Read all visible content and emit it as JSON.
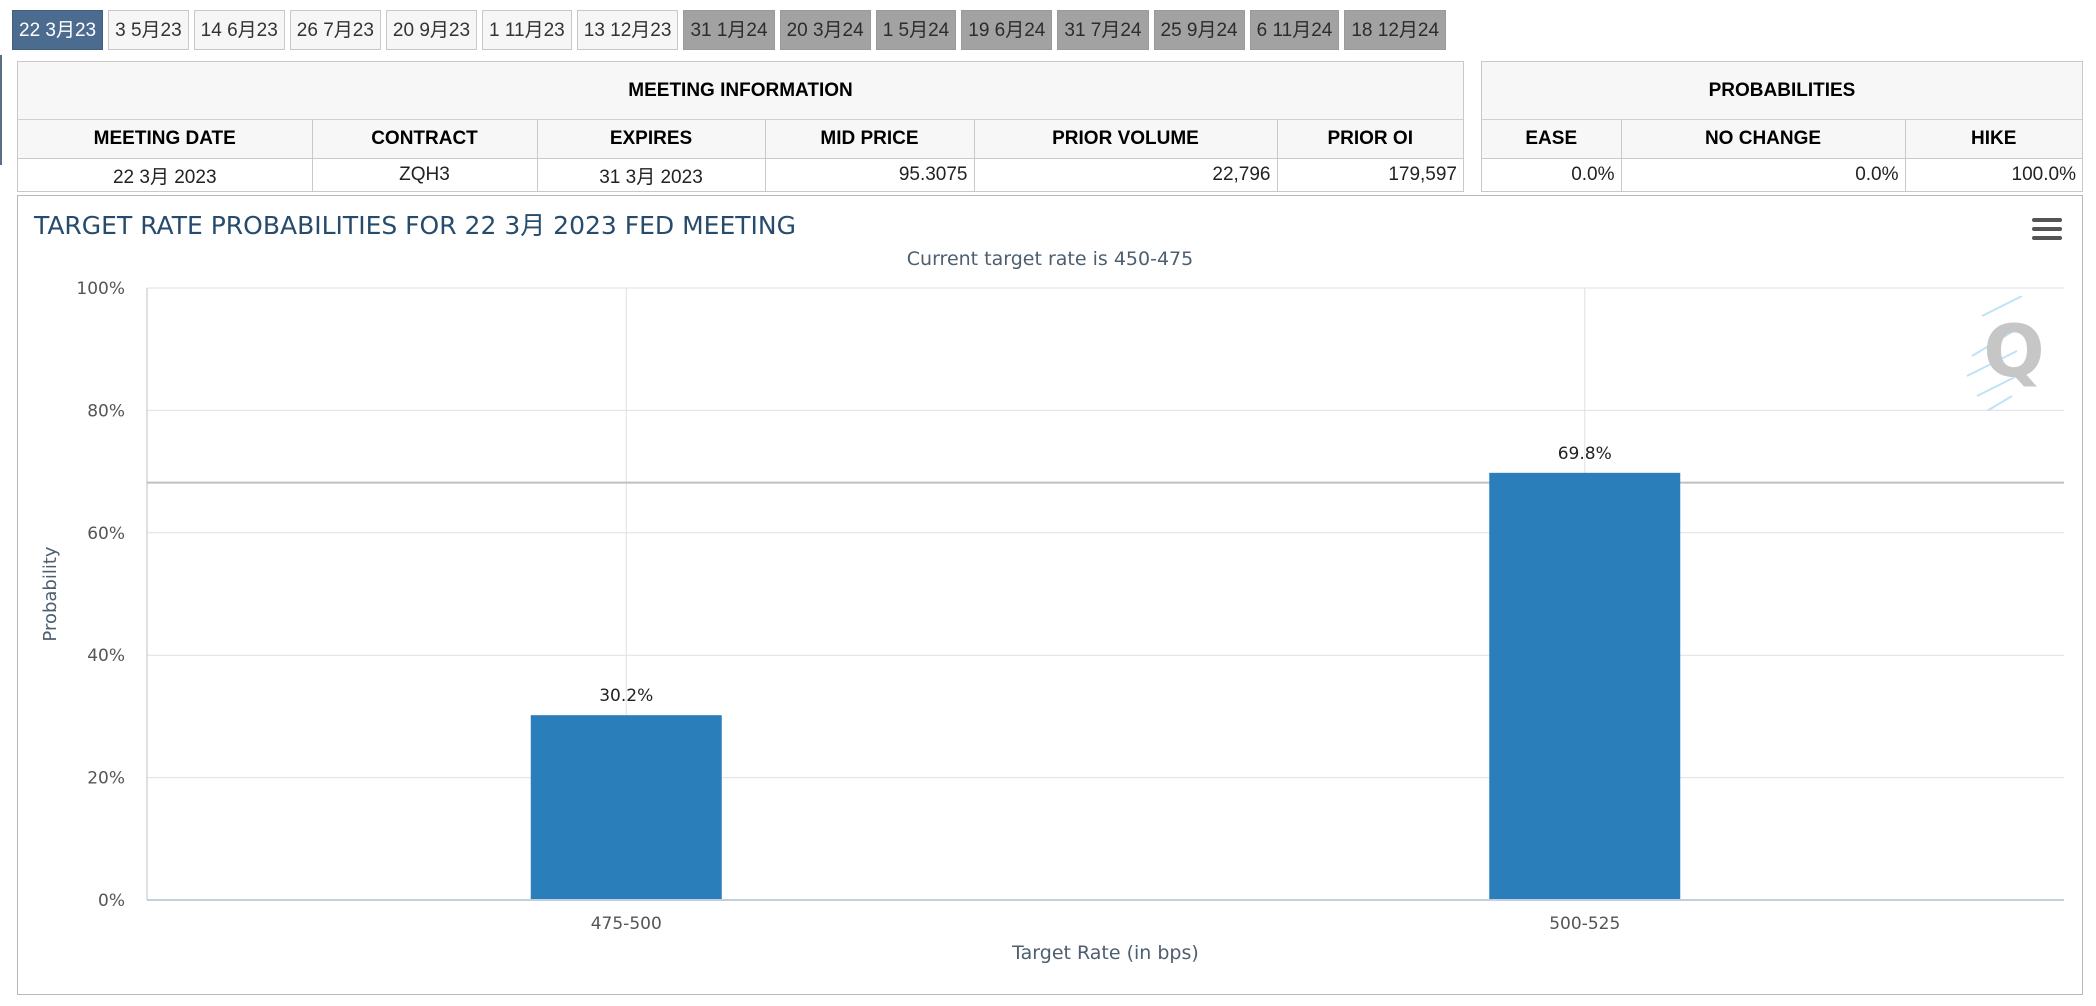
{
  "tabs": [
    {
      "label": "22 3月23",
      "state": "active"
    },
    {
      "label": "3 5月23",
      "state": "normal"
    },
    {
      "label": "14 6月23",
      "state": "normal"
    },
    {
      "label": "26 7月23",
      "state": "normal"
    },
    {
      "label": "20 9月23",
      "state": "normal"
    },
    {
      "label": "1 11月23",
      "state": "normal"
    },
    {
      "label": "13 12月23",
      "state": "normal"
    },
    {
      "label": "31 1月24",
      "state": "future"
    },
    {
      "label": "20 3月24",
      "state": "future"
    },
    {
      "label": "1 5月24",
      "state": "future"
    },
    {
      "label": "19 6月24",
      "state": "future"
    },
    {
      "label": "31 7月24",
      "state": "future"
    },
    {
      "label": "25 9月24",
      "state": "future"
    },
    {
      "label": "6 11月24",
      "state": "future"
    },
    {
      "label": "18 12月24",
      "state": "future"
    }
  ],
  "meeting_info": {
    "caption": "MEETING INFORMATION",
    "headers": [
      "MEETING DATE",
      "CONTRACT",
      "EXPIRES",
      "MID PRICE",
      "PRIOR VOLUME",
      "PRIOR OI"
    ],
    "row": [
      "22 3月 2023",
      "ZQH3",
      "31 3月 2023",
      "95.3075",
      "22,796",
      "179,597"
    ]
  },
  "probabilities": {
    "caption": "PROBABILITIES",
    "headers": [
      "EASE",
      "NO CHANGE",
      "HIKE"
    ],
    "row": [
      "0.0%",
      "0.0%",
      "100.0%"
    ]
  },
  "chart": {
    "title": "TARGET RATE PROBABILITIES FOR 22 3月 2023 FED MEETING",
    "subtitle": "Current target rate is 450-475",
    "menu_icon": "hamburger-menu-icon",
    "watermark_icon": "q-logo-icon"
  },
  "chart_data": {
    "type": "bar",
    "categories": [
      "475-500",
      "500-525"
    ],
    "values": [
      30.2,
      69.8
    ],
    "data_labels": [
      "30.2%",
      "69.8%"
    ],
    "xlabel": "Target Rate (in bps)",
    "ylabel": "Probability",
    "ylim": [
      0,
      100
    ],
    "yticks": [
      0,
      20,
      40,
      60,
      80,
      100
    ],
    "ytick_labels": [
      "0%",
      "20%",
      "40%",
      "60%",
      "80%",
      "100%"
    ],
    "reference_line": 68.2,
    "bar_color": "#2a7fba",
    "grid": true
  }
}
